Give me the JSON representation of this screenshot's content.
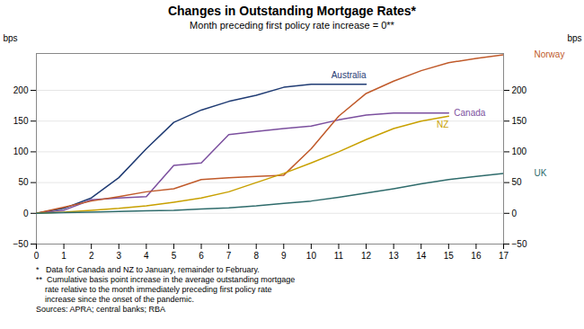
{
  "chart_data": {
    "type": "line",
    "title": "Changes in Outstanding Mortgage Rates*",
    "subtitle": "Month preceding first policy rate increase = 0**",
    "ylabel": "bps",
    "y2label": "bps",
    "x": [
      0,
      1,
      2,
      3,
      4,
      5,
      6,
      7,
      8,
      9,
      10,
      11,
      12,
      13,
      14,
      15,
      16,
      17
    ],
    "xlim": [
      0,
      17
    ],
    "xticks": [
      0,
      1,
      2,
      3,
      4,
      5,
      6,
      7,
      8,
      9,
      10,
      11,
      12,
      13,
      14,
      15,
      16,
      17
    ],
    "ylim": [
      -50,
      260
    ],
    "yticks": [
      -50,
      0,
      50,
      100,
      150,
      200
    ],
    "grid": true,
    "footnotes": [
      "*   Data for Canada and NZ to January, remainder to February.",
      "**  Cumulative basis point increase in the average outstanding mortgage",
      "    rate relative to the month immediately preceding first policy rate",
      "    increase since the onset of the pandemic.",
      "Sources: APRA; central banks; RBA"
    ],
    "series": [
      {
        "name": "Australia",
        "color": "#1f3b73",
        "values": [
          0,
          8,
          25,
          58,
          105,
          148,
          168,
          182,
          192,
          205,
          210,
          210,
          210,
          null,
          null,
          null,
          null,
          null
        ]
      },
      {
        "name": "Canada",
        "color": "#7b4f9e",
        "values": [
          0,
          5,
          22,
          25,
          27,
          78,
          82,
          128,
          133,
          138,
          142,
          152,
          160,
          163,
          163,
          163,
          null,
          null
        ]
      },
      {
        "name": "Norway",
        "color": "#c05a2a",
        "values": [
          0,
          10,
          20,
          27,
          35,
          40,
          55,
          58,
          60,
          62,
          105,
          158,
          195,
          215,
          232,
          245,
          252,
          258
        ]
      },
      {
        "name": "NZ",
        "color": "#c8a000",
        "values": [
          0,
          2,
          5,
          8,
          12,
          18,
          25,
          35,
          50,
          65,
          82,
          100,
          120,
          138,
          150,
          158,
          null,
          null
        ]
      },
      {
        "name": "UK",
        "color": "#2e6b6b",
        "values": [
          0,
          1,
          2,
          3,
          4,
          5,
          7,
          9,
          12,
          16,
          20,
          26,
          33,
          40,
          48,
          55,
          60,
          65
        ]
      }
    ]
  }
}
